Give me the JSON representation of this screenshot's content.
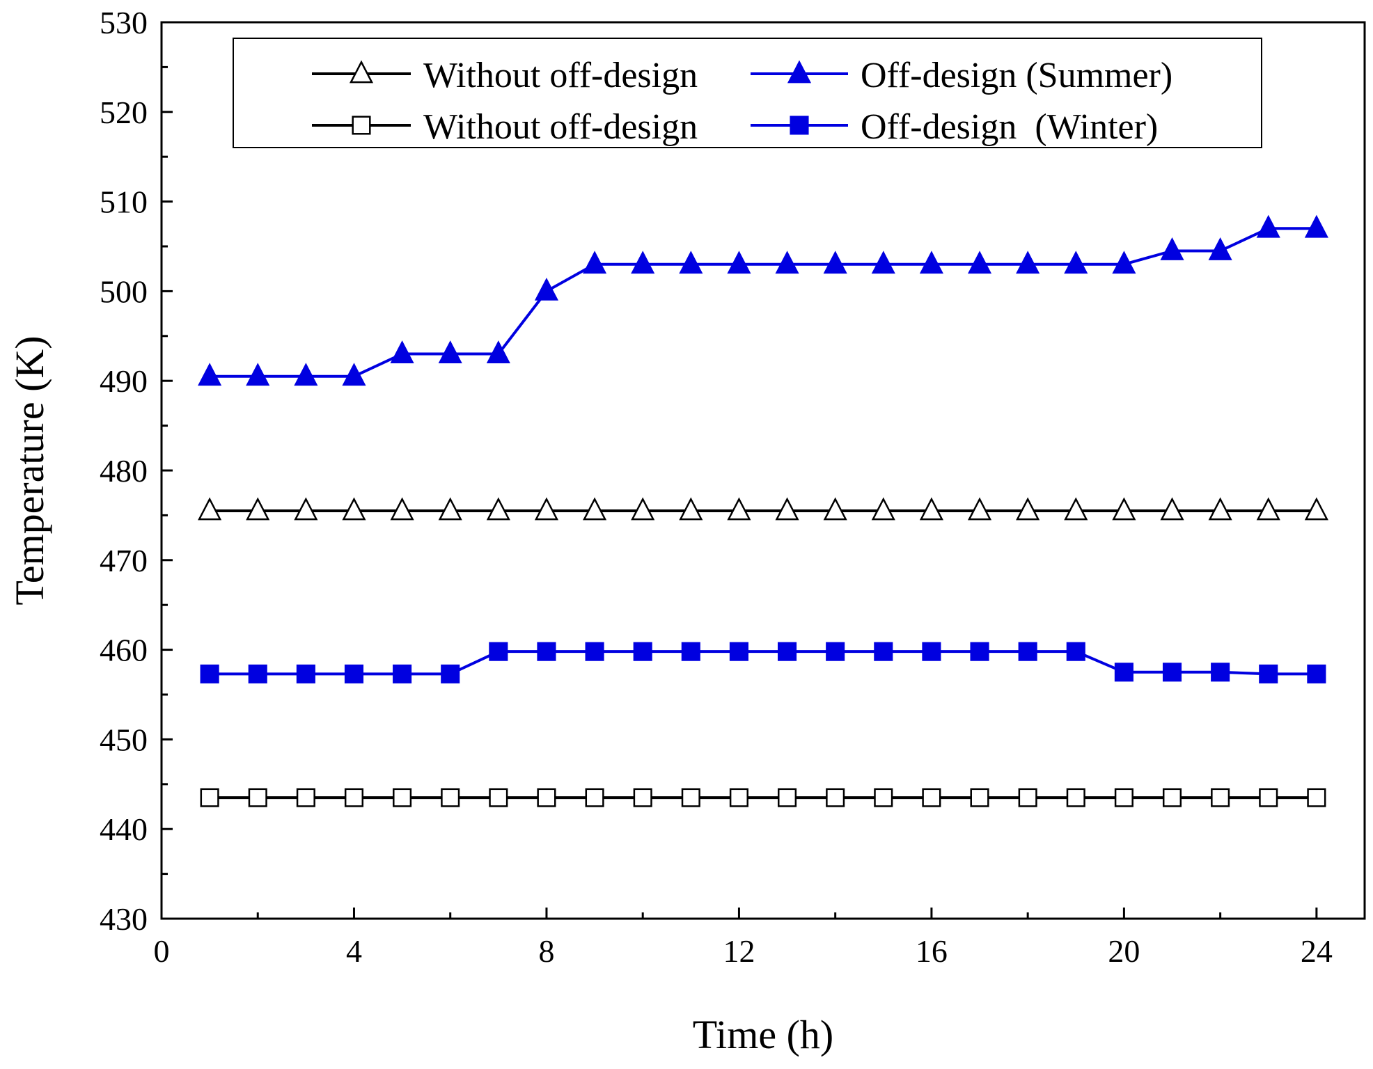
{
  "chart_data": {
    "type": "line",
    "title": "",
    "xlabel": "Time (h)",
    "ylabel": "Temperature (K)",
    "xlim": [
      0,
      25
    ],
    "ylim": [
      430,
      530
    ],
    "x_ticks": [
      0,
      4,
      8,
      12,
      16,
      20,
      24
    ],
    "x_tick_labels": [
      "0",
      "4",
      "8",
      "12",
      "16",
      "20",
      "24"
    ],
    "y_ticks": [
      430,
      440,
      450,
      460,
      470,
      480,
      490,
      500,
      510,
      520,
      530
    ],
    "y_tick_labels": [
      "430",
      "440",
      "450",
      "460",
      "470",
      "480",
      "490",
      "500",
      "510",
      "520",
      "530"
    ],
    "grid": false,
    "legend_position": "top",
    "x": [
      1,
      2,
      3,
      4,
      5,
      6,
      7,
      8,
      9,
      10,
      11,
      12,
      13,
      14,
      15,
      16,
      17,
      18,
      19,
      20,
      21,
      22,
      23,
      24
    ],
    "series": [
      {
        "name": "Without off-design",
        "color": "#000000",
        "marker": "triangle",
        "filled": false,
        "values": [
          475.5,
          475.5,
          475.5,
          475.5,
          475.5,
          475.5,
          475.5,
          475.5,
          475.5,
          475.5,
          475.5,
          475.5,
          475.5,
          475.5,
          475.5,
          475.5,
          475.5,
          475.5,
          475.5,
          475.5,
          475.5,
          475.5,
          475.5,
          475.5
        ]
      },
      {
        "name": "Off-design (Summer)",
        "color": "#0000e0",
        "marker": "triangle",
        "filled": true,
        "values": [
          490.5,
          490.5,
          490.5,
          490.5,
          493,
          493,
          493,
          500,
          503,
          503,
          503,
          503,
          503,
          503,
          503,
          503,
          503,
          503,
          503,
          503,
          504.5,
          504.5,
          507,
          507
        ]
      },
      {
        "name": "Without off-design",
        "color": "#000000",
        "marker": "square",
        "filled": false,
        "values": [
          443.5,
          443.5,
          443.5,
          443.5,
          443.5,
          443.5,
          443.5,
          443.5,
          443.5,
          443.5,
          443.5,
          443.5,
          443.5,
          443.5,
          443.5,
          443.5,
          443.5,
          443.5,
          443.5,
          443.5,
          443.5,
          443.5,
          443.5,
          443.5
        ]
      },
      {
        "name": "Off-design  (Winter)",
        "color": "#0000e0",
        "marker": "square",
        "filled": true,
        "values": [
          457.3,
          457.3,
          457.3,
          457.3,
          457.3,
          457.3,
          459.8,
          459.8,
          459.8,
          459.8,
          459.8,
          459.8,
          459.8,
          459.8,
          459.8,
          459.8,
          459.8,
          459.8,
          459.8,
          457.5,
          457.5,
          457.5,
          457.3,
          457.3
        ]
      }
    ]
  }
}
